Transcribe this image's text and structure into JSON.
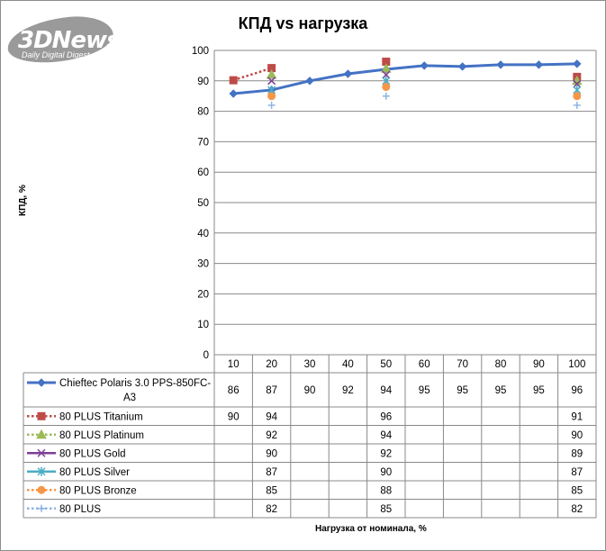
{
  "watermark": {
    "brand": "3DNews",
    "tagline": "Daily Digital Digest"
  },
  "chart_data": {
    "type": "line",
    "title": "КПД vs нагрузка",
    "ylabel": "КПД, %",
    "xlabel": "Нагрузка  от номинала,  %",
    "ylim": [
      0,
      100
    ],
    "yticks": [
      "0",
      "10",
      "20",
      "30",
      "40",
      "50",
      "60",
      "70",
      "80",
      "90",
      "100"
    ],
    "categories": [
      "10",
      "20",
      "30",
      "40",
      "50",
      "60",
      "70",
      "80",
      "90",
      "100"
    ],
    "grid": true,
    "legend": "data-table",
    "series": [
      {
        "name": "Chieftec Polaris 3.0 PPS-850FC-A3",
        "color": "#4472c4",
        "marker": "diamond",
        "dash": "solid",
        "values": [
          86,
          87,
          90,
          92,
          94,
          95,
          95,
          95,
          95,
          96
        ],
        "table": [
          "86",
          "87",
          "90",
          "92",
          "94",
          "95",
          "95",
          "95",
          "95",
          "96"
        ],
        "plot": [
          85.8,
          87,
          90,
          92.3,
          93.8,
          95,
          94.7,
          95.3,
          95.3,
          95.6
        ]
      },
      {
        "name": "80 PLUS Titanium",
        "color": "#be4b48",
        "marker": "square",
        "dash": "dot",
        "values": [
          90,
          94,
          null,
          null,
          96,
          null,
          null,
          null,
          null,
          91
        ],
        "table": [
          "90",
          "94",
          "",
          "",
          "96",
          "",
          "",
          "",
          "",
          "91"
        ],
        "plot": [
          90.2,
          94.2,
          null,
          null,
          96.3,
          null,
          null,
          null,
          null,
          91.3
        ]
      },
      {
        "name": "80 PLUS Platinum",
        "color": "#9bbb59",
        "marker": "triangle",
        "dash": "dot",
        "values": [
          null,
          92,
          null,
          null,
          94,
          null,
          null,
          null,
          null,
          90
        ],
        "table": [
          "",
          "92",
          "",
          "",
          "94",
          "",
          "",
          "",
          "",
          "90"
        ],
        "plot": [
          null,
          92,
          null,
          null,
          94,
          null,
          null,
          null,
          null,
          90
        ]
      },
      {
        "name": "80 PLUS Gold",
        "color": "#7e3f98",
        "marker": "x",
        "dash": "solid",
        "values": [
          null,
          90,
          null,
          null,
          92,
          null,
          null,
          null,
          null,
          89
        ],
        "table": [
          "",
          "90",
          "",
          "",
          "92",
          "",
          "",
          "",
          "",
          "89"
        ],
        "plot": [
          null,
          90,
          null,
          null,
          92,
          null,
          null,
          null,
          null,
          89
        ]
      },
      {
        "name": "80 PLUS Silver",
        "color": "#4bacc6",
        "marker": "star",
        "dash": "solid",
        "values": [
          null,
          87,
          null,
          null,
          90,
          null,
          null,
          null,
          null,
          87
        ],
        "table": [
          "",
          "87",
          "",
          "",
          "90",
          "",
          "",
          "",
          "",
          "87"
        ],
        "plot": [
          null,
          87,
          null,
          null,
          90,
          null,
          null,
          null,
          null,
          87
        ]
      },
      {
        "name": "80 PLUS Bronze",
        "color": "#f79646",
        "marker": "circle",
        "dash": "dot",
        "values": [
          null,
          85,
          null,
          null,
          88,
          null,
          null,
          null,
          null,
          85
        ],
        "table": [
          "",
          "85",
          "",
          "",
          "88",
          "",
          "",
          "",
          "",
          "85"
        ],
        "plot": [
          null,
          85,
          null,
          null,
          88,
          null,
          null,
          null,
          null,
          85
        ]
      },
      {
        "name": "80 PLUS",
        "color": "#8eb4e3",
        "marker": "plus",
        "dash": "dot",
        "values": [
          null,
          82,
          null,
          null,
          85,
          null,
          null,
          null,
          null,
          82
        ],
        "table": [
          "",
          "82",
          "",
          "",
          "85",
          "",
          "",
          "",
          "",
          "82"
        ],
        "plot": [
          null,
          82,
          null,
          null,
          85,
          null,
          null,
          null,
          null,
          82
        ]
      }
    ]
  }
}
